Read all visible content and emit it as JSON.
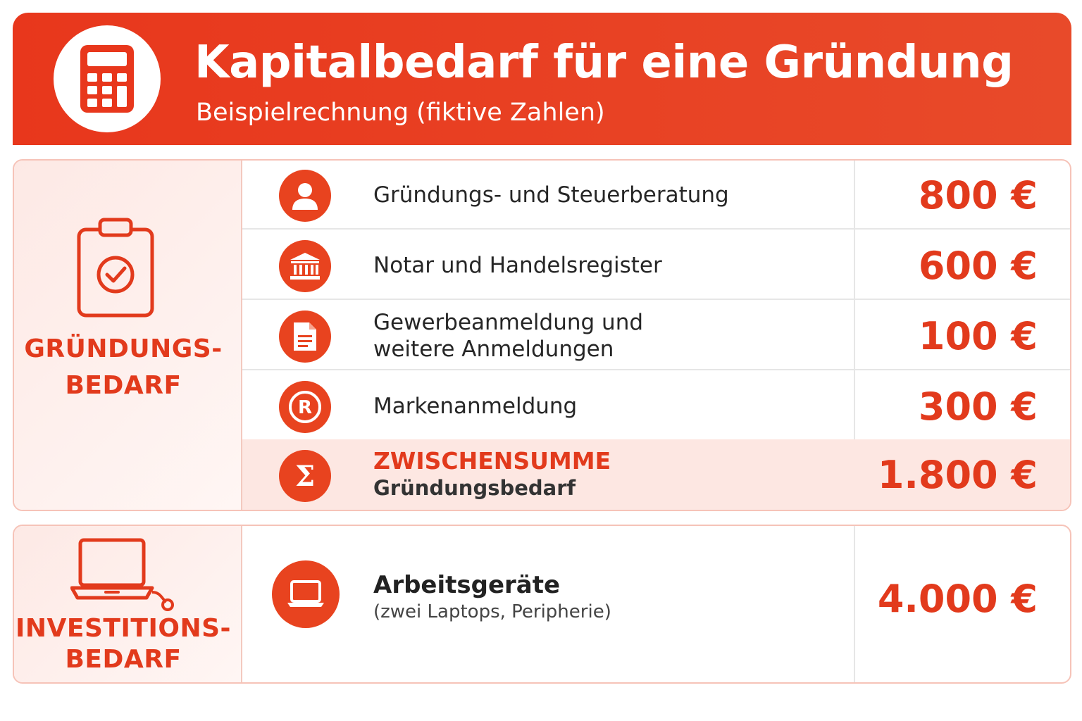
{
  "header": {
    "title": "Kapitalbedarf für eine Gründung",
    "subtitle": "Beispielrechnung (fiktive Zahlen)",
    "icon": "calculator-icon"
  },
  "colors": {
    "accent": "#e8371c",
    "section_tint": "#fde9e5",
    "sum_row": "#fde7e2"
  },
  "gruendungsbedarf": {
    "label_line1": "GRÜNDUNGS-",
    "label_line2": "BEDARF",
    "icon": "clipboard-check-icon",
    "items": [
      {
        "icon": "user-icon",
        "label": "Gründungs- und Steuerberatung",
        "value": "800 €"
      },
      {
        "icon": "bank-building-icon",
        "label": "Notar und Handelsregister",
        "value": "600 €"
      },
      {
        "icon": "document-icon",
        "label_line1": "Gewerbeanmeldung und",
        "label_line2": "weitere Anmeldungen",
        "value": "100 €"
      },
      {
        "icon": "registered-trademark-icon",
        "label": "Markenanmeldung",
        "value": "300 €"
      }
    ],
    "subtotal": {
      "icon": "sigma-icon",
      "label": "ZWISCHENSUMME",
      "sublabel": "Gründungsbedarf",
      "value": "1.800 €"
    }
  },
  "investitionsbedarf": {
    "label_line1": "INVESTITIONS-",
    "label_line2": "BEDARF",
    "icon": "laptop-icon",
    "items": [
      {
        "icon": "laptop-icon",
        "label": "Arbeitsgeräte",
        "detail": "(zwei Laptops, Peripherie)",
        "value": "4.000 €"
      }
    ]
  }
}
